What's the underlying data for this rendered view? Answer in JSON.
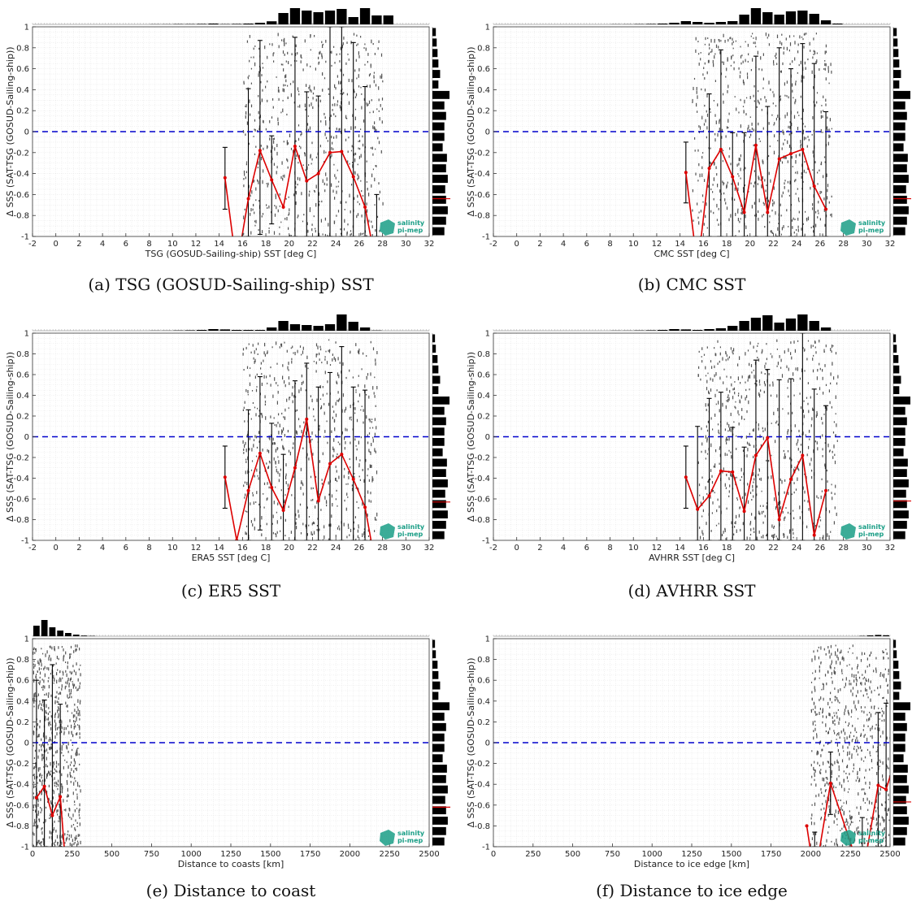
{
  "colors": {
    "zero_line": "#0000cc",
    "mean": "#dd0000",
    "bars": "#000000",
    "scatter": "#555555",
    "logo": "#1a9e86"
  },
  "logo": {
    "line1": "salinity",
    "line2": "pi-mep"
  },
  "chart_data": [
    {
      "type": "scatter",
      "caption": "(a) TSG (GOSUD-Sailing-ship) SST",
      "xlabel": "TSG (GOSUD-Sailing-ship) SST [deg C]",
      "ylabel": "Δ SSS (SAT-TSG (GOSUD-Sailing-ship))",
      "xlim": [
        -2,
        32
      ],
      "ylim": [
        -1,
        1
      ],
      "xticks": [
        -2,
        0,
        2,
        4,
        6,
        8,
        10,
        12,
        14,
        16,
        18,
        20,
        22,
        24,
        26,
        28,
        30,
        32
      ],
      "yticks": [
        -1,
        -0.8,
        -0.6,
        -0.4,
        -0.2,
        0,
        0.2,
        0.4,
        0.6,
        0.8,
        1
      ],
      "grid": true,
      "zero_line": 0,
      "mean_x": [
        14.5,
        15.5,
        16.5,
        17.5,
        18.5,
        19.5,
        20.5,
        21.5,
        22.5,
        23.5,
        24.5,
        25.5,
        26.5,
        27.5
      ],
      "mean_y": [
        -0.44,
        -1.3,
        -0.64,
        -0.18,
        -0.46,
        -0.72,
        -0.14,
        -0.47,
        -0.4,
        -0.2,
        -0.19,
        -0.43,
        -0.72,
        -1.3
      ],
      "err_low": [
        -0.74,
        -0.86,
        -1.0,
        -0.98,
        -0.88,
        -0.24,
        -1.0,
        -1.0,
        -1.0,
        -1.0,
        -1.0,
        -1.0,
        -1.0,
        -1.0
      ],
      "err_high": [
        -0.15,
        -0.86,
        0.41,
        0.87,
        -0.04,
        -0.24,
        0.9,
        0.38,
        0.34,
        1.0,
        1.0,
        0.85,
        0.43,
        -0.6
      ],
      "hist_top": [
        0.01,
        0.01,
        0.02,
        0.02,
        0.03,
        0.05,
        0.02,
        0.03,
        0.05,
        0.1,
        0.19,
        0.7,
        1.0,
        0.85,
        0.75,
        0.85,
        0.95,
        0.45,
        1.0,
        0.55,
        0.55
      ],
      "hist_right": [
        0.2,
        0.25,
        0.3,
        0.35,
        0.45,
        0.35,
        1.0,
        0.7,
        0.8,
        0.7,
        0.7,
        0.6,
        0.85,
        0.8,
        0.9,
        0.75,
        0.8,
        0.9,
        0.8,
        0.7
      ],
      "hist_right_mean": -0.64,
      "scatter_x_range": [
        16,
        28
      ]
    },
    {
      "type": "scatter",
      "caption": "(b) CMC SST",
      "xlabel": "CMC SST [deg C]",
      "ylabel": "Δ SSS (SAT-TSG (GOSUD-Sailing-ship))",
      "xlim": [
        -2,
        32
      ],
      "ylim": [
        -1,
        1
      ],
      "xticks": [
        -2,
        0,
        2,
        4,
        6,
        8,
        10,
        12,
        14,
        16,
        18,
        20,
        22,
        24,
        26,
        28,
        30,
        32
      ],
      "yticks": [
        -1,
        -0.8,
        -0.6,
        -0.4,
        -0.2,
        0,
        0.2,
        0.4,
        0.6,
        0.8,
        1
      ],
      "grid": true,
      "zero_line": 0,
      "mean_x": [
        14.5,
        15.5,
        16.5,
        17.5,
        18.5,
        19.5,
        20.5,
        21.5,
        22.5,
        23.5,
        24.5,
        25.5,
        26.5
      ],
      "mean_y": [
        -0.39,
        -1.3,
        -0.35,
        -0.17,
        -0.43,
        -0.77,
        -0.13,
        -0.77,
        -0.26,
        -0.21,
        -0.17,
        -0.52,
        -0.74
      ],
      "err_low": [
        -0.68,
        -0.22,
        -1.0,
        -1.0,
        -1.0,
        -1.0,
        -1.0,
        -1.0,
        -1.0,
        -1.0,
        -1.0,
        -1.0,
        -1.0
      ],
      "err_high": [
        -0.1,
        -0.22,
        0.36,
        0.78,
        -0.01,
        -0.01,
        0.72,
        0.24,
        0.8,
        0.6,
        0.84,
        0.65,
        0.19
      ],
      "hist_top": [
        0.01,
        0.01,
        0.02,
        0.03,
        0.05,
        0.1,
        0.2,
        0.15,
        0.1,
        0.15,
        0.2,
        0.6,
        1.0,
        0.75,
        0.6,
        0.8,
        0.85,
        0.65,
        0.25,
        0.05
      ],
      "hist_right": [
        0.2,
        0.25,
        0.3,
        0.35,
        0.45,
        0.35,
        1.0,
        0.7,
        0.8,
        0.7,
        0.7,
        0.6,
        0.85,
        0.8,
        0.9,
        0.75,
        0.8,
        0.9,
        0.8,
        0.7
      ],
      "hist_right_mean": -0.64,
      "scatter_x_range": [
        15,
        27
      ]
    },
    {
      "type": "scatter",
      "caption": "(c) ER5 SST",
      "xlabel": "ERA5 SST [deg C]",
      "ylabel": "Δ SSS (SAT-TSG (GOSUD-Sailing-ship))",
      "xlim": [
        -2,
        32
      ],
      "ylim": [
        -1,
        1
      ],
      "xticks": [
        -2,
        0,
        2,
        4,
        6,
        8,
        10,
        12,
        14,
        16,
        18,
        20,
        22,
        24,
        26,
        28,
        30,
        32
      ],
      "yticks": [
        -1,
        -0.8,
        -0.6,
        -0.4,
        -0.2,
        0,
        0.2,
        0.4,
        0.6,
        0.8,
        1
      ],
      "grid": true,
      "zero_line": 0,
      "mean_x": [
        14.5,
        15.5,
        16.5,
        17.5,
        18.5,
        19.5,
        20.5,
        21.5,
        22.5,
        23.5,
        24.5,
        25.5,
        26.5,
        27.5
      ],
      "mean_y": [
        -0.39,
        -1.0,
        -0.52,
        -0.16,
        -0.49,
        -0.71,
        -0.3,
        0.17,
        -0.62,
        -0.26,
        -0.17,
        -0.41,
        -0.68,
        -1.3
      ],
      "err_low": [
        -0.69,
        -0.08,
        -1.0,
        -0.9,
        -1.0,
        -1.0,
        -1.0,
        -1.0,
        -1.0,
        -1.0,
        -1.0,
        -1.0,
        -1.0,
        -1.0
      ],
      "err_high": [
        -0.09,
        -0.08,
        0.26,
        0.58,
        0.13,
        -0.17,
        0.54,
        0.71,
        0.48,
        0.62,
        0.87,
        0.48,
        0.45,
        -1.0
      ],
      "hist_top": [
        0.01,
        0.01,
        0.02,
        0.03,
        0.05,
        0.1,
        0.08,
        0.05,
        0.05,
        0.05,
        0.2,
        0.6,
        0.4,
        0.35,
        0.3,
        0.4,
        1.0,
        0.55,
        0.2,
        0.02
      ],
      "hist_right": [
        0.15,
        0.2,
        0.3,
        0.35,
        0.45,
        0.35,
        1.0,
        0.7,
        0.8,
        0.7,
        0.7,
        0.6,
        0.85,
        0.8,
        0.9,
        0.75,
        0.8,
        0.9,
        0.8,
        0.7
      ],
      "hist_right_mean": -0.63,
      "scatter_x_range": [
        16,
        27.5
      ]
    },
    {
      "type": "scatter",
      "caption": "(d) AVHRR SST",
      "xlabel": "AVHRR SST [deg C]",
      "ylabel": "Δ SSS (SAT-TSG (GOSUD-Sailing-ship))",
      "xlim": [
        -2,
        32
      ],
      "ylim": [
        -1,
        1
      ],
      "xticks": [
        -2,
        0,
        2,
        4,
        6,
        8,
        10,
        12,
        14,
        16,
        18,
        20,
        22,
        24,
        26,
        28,
        30,
        32
      ],
      "yticks": [
        -1,
        -0.8,
        -0.6,
        -0.4,
        -0.2,
        0,
        0.2,
        0.4,
        0.6,
        0.8,
        1
      ],
      "grid": true,
      "zero_line": 0,
      "mean_x": [
        14.5,
        15.5,
        16.5,
        17.5,
        18.5,
        19.5,
        20.5,
        21.5,
        22.5,
        23.5,
        24.5,
        25.5,
        26.5
      ],
      "mean_y": [
        -0.39,
        -0.7,
        -0.57,
        -0.33,
        -0.34,
        -0.72,
        -0.18,
        -0.01,
        -0.8,
        -0.41,
        -0.18,
        -0.95,
        -0.52
      ],
      "err_low": [
        -0.69,
        -1.0,
        -1.0,
        -1.0,
        -1.0,
        -1.0,
        -1.0,
        -1.0,
        -1.0,
        -1.0,
        -1.0,
        -1.0,
        -1.0
      ],
      "err_high": [
        -0.09,
        0.1,
        0.37,
        0.43,
        0.09,
        -0.1,
        0.74,
        0.65,
        0.55,
        0.56,
        1.0,
        0.46,
        0.3
      ],
      "hist_top": [
        0.01,
        0.01,
        0.02,
        0.03,
        0.05,
        0.1,
        0.08,
        0.05,
        0.1,
        0.15,
        0.3,
        0.6,
        0.8,
        0.95,
        0.5,
        0.75,
        1.0,
        0.6,
        0.2
      ],
      "hist_right": [
        0.15,
        0.2,
        0.3,
        0.35,
        0.45,
        0.35,
        1.0,
        0.7,
        0.8,
        0.7,
        0.7,
        0.6,
        0.85,
        0.8,
        0.9,
        0.75,
        0.8,
        0.9,
        0.8,
        0.7
      ],
      "hist_right_mean": -0.62,
      "scatter_x_range": [
        15.5,
        27.5
      ]
    },
    {
      "type": "scatter",
      "caption": "(e) Distance to coast",
      "xlabel": "Distance to coasts [km]",
      "ylabel": "Δ SSS (SAT-TSG (GOSUD-Sailing-ship))",
      "xlim": [
        0,
        2500
      ],
      "ylim": [
        -1,
        1
      ],
      "xticks": [
        0,
        250,
        500,
        750,
        1000,
        1250,
        1500,
        1750,
        2000,
        2250,
        2500
      ],
      "yticks": [
        -1,
        -0.8,
        -0.6,
        -0.4,
        -0.2,
        0,
        0.2,
        0.4,
        0.6,
        0.8,
        1
      ],
      "grid": true,
      "zero_line": 0,
      "mean_x": [
        25,
        75,
        125,
        175,
        225,
        275
      ],
      "mean_y": [
        -0.53,
        -0.42,
        -0.7,
        -0.52,
        -1.5,
        -1.3
      ],
      "err_low": [
        -1.0,
        -1.0,
        -1.0,
        -1.0,
        -1.0,
        -0.98
      ],
      "err_high": [
        0.6,
        0.41,
        0.75,
        0.37,
        -1.0,
        -0.98
      ],
      "hist_top": [
        0.65,
        1.0,
        0.55,
        0.35,
        0.2,
        0.1,
        0.04,
        0.02
      ],
      "hist_top_bin_width": 50,
      "hist_right": [
        0.15,
        0.2,
        0.3,
        0.35,
        0.45,
        0.35,
        1.0,
        0.7,
        0.8,
        0.7,
        0.7,
        0.6,
        0.85,
        0.8,
        0.9,
        0.75,
        0.8,
        0.9,
        0.8,
        0.7
      ],
      "hist_right_mean": -0.62,
      "scatter_x_range": [
        0,
        300
      ]
    },
    {
      "type": "scatter",
      "caption": "(f) Distance to ice edge",
      "xlabel": "Distance to ice edge [km]",
      "ylabel": "Δ SSS (SAT-TSG (GOSUD-Sailing-ship))",
      "xlim": [
        0,
        2500
      ],
      "ylim": [
        -1,
        1
      ],
      "xticks": [
        0,
        250,
        500,
        750,
        1000,
        1250,
        1500,
        1750,
        2000,
        2250,
        2500
      ],
      "yticks": [
        -1,
        -0.8,
        -0.6,
        -0.4,
        -0.2,
        0,
        0.2,
        0.4,
        0.6,
        0.8,
        1
      ],
      "grid": true,
      "zero_line": 0,
      "mean_x": [
        1975,
        2025,
        2125,
        2325,
        2425,
        2475,
        2525
      ],
      "mean_y": [
        -0.8,
        -1.3,
        -0.39,
        -1.3,
        -0.41,
        -0.45,
        -0.2
      ],
      "err_low": [
        -0.8,
        -1.0,
        -0.69,
        -1.0,
        -1.0,
        -1.0,
        -1.0
      ],
      "err_high": [
        -0.8,
        -0.86,
        -0.09,
        -0.72,
        0.29,
        0.38,
        0.5
      ],
      "hist_top": [
        0.02,
        0.05,
        0.08,
        0.06
      ],
      "hist_top_start": 2300,
      "hist_top_bin_width": 50,
      "hist_right": [
        0.15,
        0.2,
        0.3,
        0.35,
        0.45,
        0.35,
        1.0,
        0.7,
        0.8,
        0.7,
        0.7,
        0.6,
        0.85,
        0.8,
        0.9,
        0.75,
        0.8,
        0.9,
        0.8,
        0.7
      ],
      "hist_right_mean": -0.57,
      "scatter_x_range": [
        2000,
        2500
      ]
    }
  ]
}
